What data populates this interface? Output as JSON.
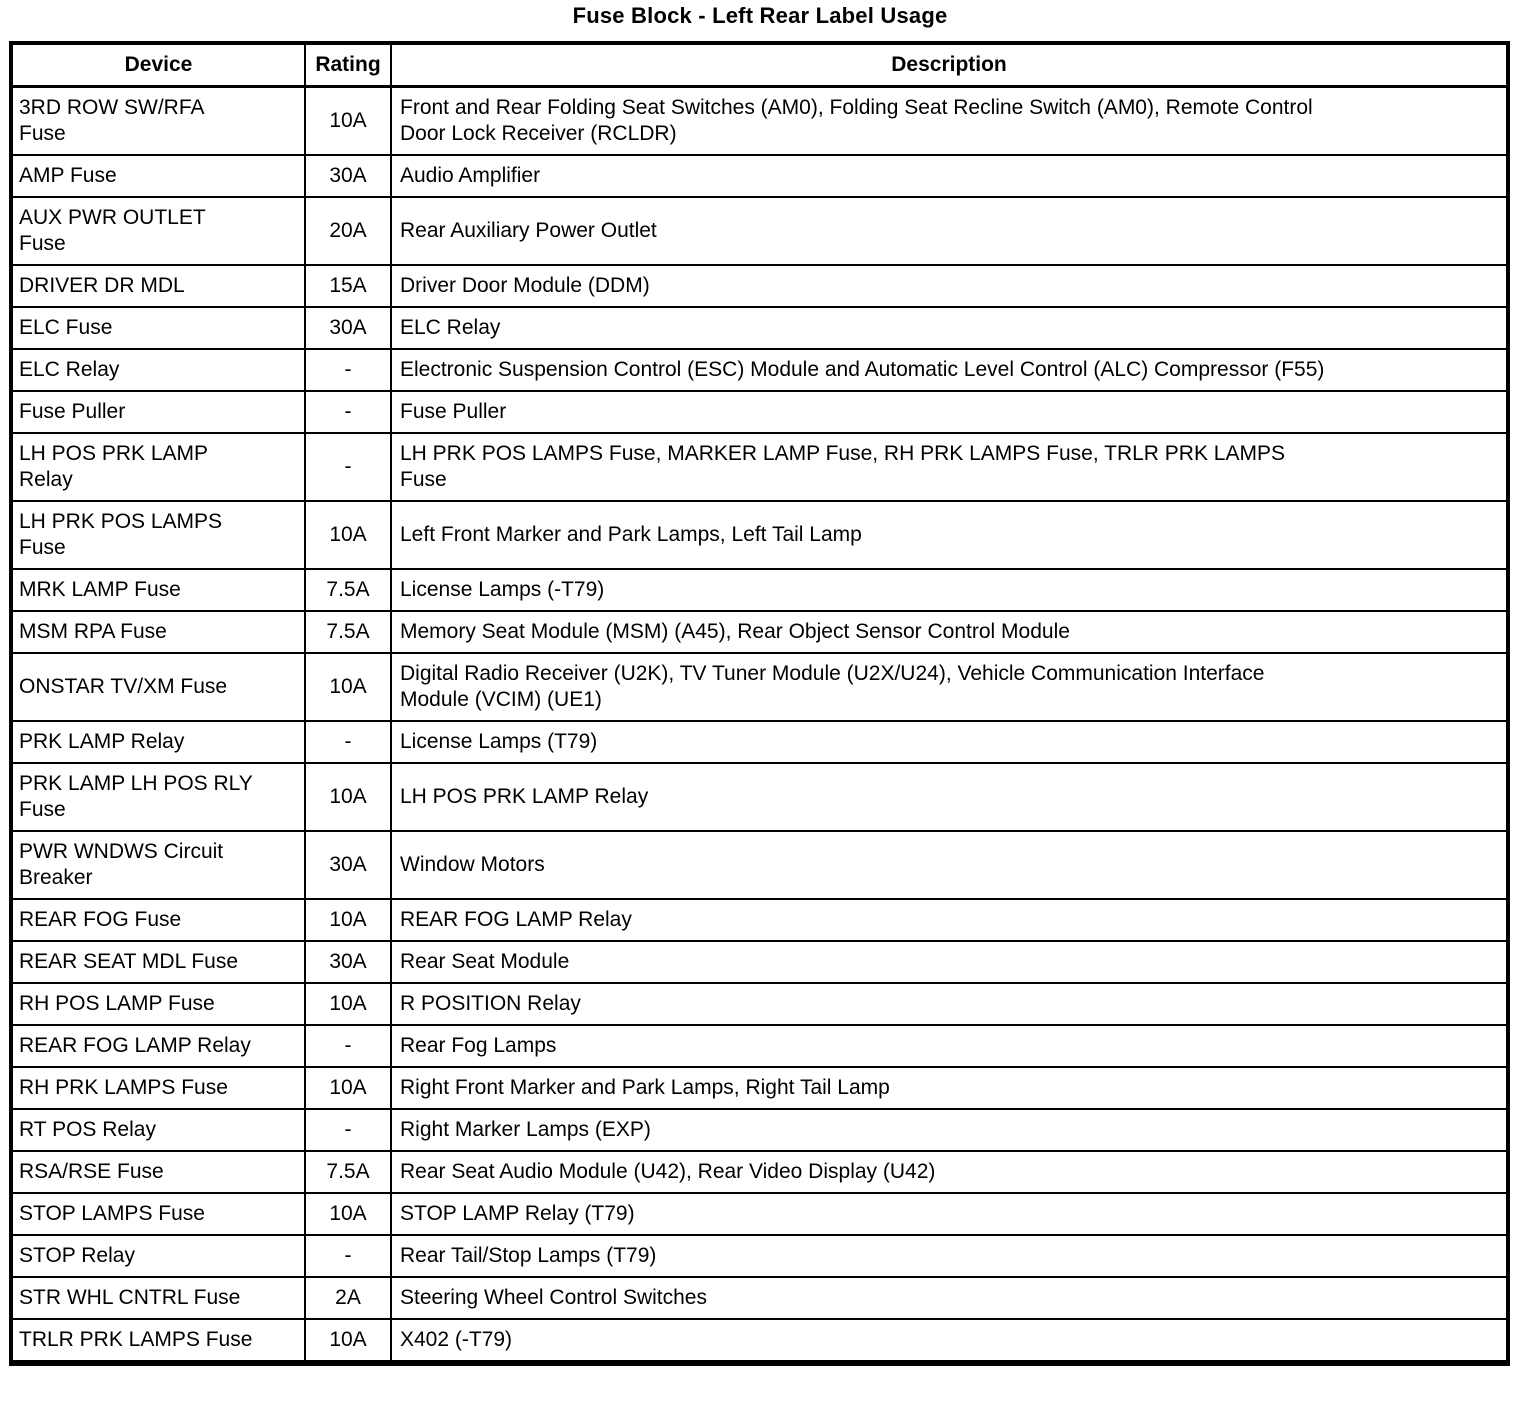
{
  "page": {
    "title": "Fuse Block - Left Rear Label Usage"
  },
  "colors": {
    "background": "#ffffff",
    "text": "#000000",
    "border": "#000000"
  },
  "table": {
    "headers": [
      "Device",
      "Rating",
      "Description"
    ],
    "rows": [
      {
        "device": "3RD ROW SW/RFA\nFuse",
        "rating": "10A",
        "description": "Front and Rear Folding Seat Switches (AM0), Folding Seat Recline Switch (AM0), Remote Control\nDoor Lock Receiver (RCLDR)"
      },
      {
        "device": "AMP Fuse",
        "rating": "30A",
        "description": "Audio Amplifier"
      },
      {
        "device": "AUX PWR OUTLET\nFuse",
        "rating": "20A",
        "description": "Rear Auxiliary Power Outlet"
      },
      {
        "device": "DRIVER DR MDL",
        "rating": "15A",
        "description": "Driver Door Module (DDM)"
      },
      {
        "device": "ELC Fuse",
        "rating": "30A",
        "description": "ELC Relay"
      },
      {
        "device": "ELC Relay",
        "rating": "-",
        "description": "Electronic Suspension Control (ESC) Module and Automatic Level Control (ALC) Compressor (F55)"
      },
      {
        "device": "Fuse Puller",
        "rating": "-",
        "description": "Fuse Puller"
      },
      {
        "device": "LH POS PRK LAMP\nRelay",
        "rating": "-",
        "description": "LH PRK POS LAMPS Fuse, MARKER LAMP Fuse, RH PRK LAMPS Fuse, TRLR PRK LAMPS\nFuse"
      },
      {
        "device": "LH PRK POS LAMPS\nFuse",
        "rating": "10A",
        "description": "Left Front Marker and Park Lamps, Left Tail Lamp"
      },
      {
        "device": "MRK LAMP Fuse",
        "rating": "7.5A",
        "description": "License Lamps (-T79)"
      },
      {
        "device": "MSM RPA Fuse",
        "rating": "7.5A",
        "description": "Memory Seat Module (MSM) (A45), Rear Object Sensor Control Module"
      },
      {
        "device": "ONSTAR TV/XM Fuse",
        "rating": "10A",
        "description": "Digital Radio Receiver (U2K), TV Tuner Module (U2X/U24), Vehicle Communication Interface\nModule (VCIM) (UE1)"
      },
      {
        "device": "PRK LAMP Relay",
        "rating": "-",
        "description": "License Lamps (T79)"
      },
      {
        "device": "PRK LAMP LH POS RLY\nFuse",
        "rating": "10A",
        "description": "LH POS PRK LAMP Relay"
      },
      {
        "device": "PWR WNDWS Circuit\nBreaker",
        "rating": "30A",
        "description": "Window Motors"
      },
      {
        "device": "REAR FOG Fuse",
        "rating": "10A",
        "description": "REAR FOG LAMP Relay"
      },
      {
        "device": "REAR SEAT MDL Fuse",
        "rating": "30A",
        "description": "Rear Seat Module"
      },
      {
        "device": "RH POS LAMP Fuse",
        "rating": "10A",
        "description": "R POSITION Relay"
      },
      {
        "device": "REAR FOG LAMP Relay",
        "rating": "-",
        "description": "Rear Fog Lamps"
      },
      {
        "device": "RH PRK LAMPS Fuse",
        "rating": "10A",
        "description": "Right Front Marker and Park Lamps, Right Tail Lamp"
      },
      {
        "device": "RT POS Relay",
        "rating": "-",
        "description": "Right Marker Lamps (EXP)"
      },
      {
        "device": "RSA/RSE Fuse",
        "rating": "7.5A",
        "description": "Rear Seat Audio Module (U42), Rear Video Display (U42)"
      },
      {
        "device": "STOP LAMPS Fuse",
        "rating": "10A",
        "description": "STOP LAMP Relay (T79)"
      },
      {
        "device": "STOP Relay",
        "rating": "-",
        "description": "Rear Tail/Stop Lamps (T79)"
      },
      {
        "device": "STR WHL CNTRL Fuse",
        "rating": "2A",
        "description": "Steering Wheel Control Switches"
      },
      {
        "device": "TRLR PRK LAMPS Fuse",
        "rating": "10A",
        "description": "X402 (-T79)"
      }
    ]
  }
}
